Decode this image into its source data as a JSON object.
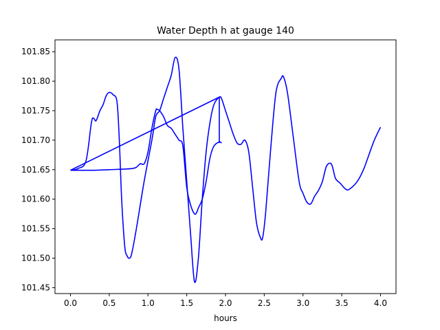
{
  "chart_data": {
    "type": "line",
    "title": "Water Depth h at gauge 140",
    "xlabel": "hours",
    "ylabel": "",
    "xlim": [
      -0.2,
      4.2
    ],
    "ylim": [
      101.44,
      101.87
    ],
    "xticks": [
      "0.0",
      "0.5",
      "1.0",
      "1.5",
      "2.0",
      "2.5",
      "3.0",
      "3.5",
      "4.0"
    ],
    "yticks": [
      "101.45",
      "101.50",
      "101.55",
      "101.60",
      "101.65",
      "101.70",
      "101.75",
      "101.80",
      "101.85"
    ],
    "grid": false,
    "line_color": "#0000ff",
    "series": [
      {
        "x": [
          0.0,
          0.1,
          0.2,
          0.27,
          0.3,
          0.33,
          0.38,
          0.42,
          0.46,
          0.5,
          0.55,
          0.6,
          0.63,
          0.66,
          0.7,
          0.73,
          0.76,
          0.79,
          0.85,
          0.95,
          1.05,
          1.1,
          1.15,
          1.2,
          1.25,
          1.3,
          1.35,
          1.4,
          1.45,
          1.5,
          1.55,
          1.6,
          1.65,
          1.7,
          1.75,
          1.8,
          1.85,
          1.92,
          1.95,
          2.0,
          2.05,
          2.1,
          2.15,
          2.2,
          2.25,
          2.3,
          2.35,
          2.4,
          2.45,
          2.48,
          2.52,
          2.58,
          2.65,
          2.72,
          2.75,
          2.8,
          2.87,
          2.95,
          3.0,
          3.05,
          3.1,
          3.15,
          3.2,
          3.25,
          3.3,
          3.35,
          3.38,
          3.42,
          3.48,
          3.55,
          3.6,
          3.7,
          3.78,
          3.85,
          3.92,
          4.0
        ],
        "y": [
          101.649,
          101.652,
          101.665,
          101.73,
          101.737,
          101.733,
          101.75,
          101.76,
          101.775,
          101.781,
          101.777,
          101.765,
          101.7,
          101.6,
          101.52,
          101.504,
          101.5,
          101.508,
          101.55,
          101.63,
          101.7,
          101.74,
          101.75,
          101.77,
          101.79,
          101.81,
          101.84,
          101.82,
          101.72,
          101.63,
          101.54,
          101.46,
          101.5,
          101.6,
          101.68,
          101.73,
          101.76,
          101.773,
          101.77,
          101.75,
          101.73,
          101.71,
          101.695,
          101.693,
          101.7,
          101.68,
          101.62,
          101.56,
          101.535,
          101.535,
          101.58,
          101.68,
          101.78,
          101.805,
          101.807,
          101.78,
          101.71,
          101.63,
          101.61,
          101.595,
          101.592,
          101.605,
          101.615,
          101.63,
          101.655,
          101.661,
          101.655,
          101.635,
          101.627,
          101.617,
          101.617,
          101.63,
          101.65,
          101.675,
          101.7,
          101.722
        ]
      },
      {
        "x": [
          1.95,
          1.92,
          1.85,
          1.8,
          1.75,
          1.7,
          1.65,
          1.63,
          1.6,
          1.55,
          1.5,
          1.45,
          1.4,
          1.35,
          1.3,
          1.25,
          1.2,
          1.15,
          1.12,
          1.1,
          1.05,
          1.0,
          0.95,
          0.9,
          0.85,
          0.8,
          0.7,
          0.5,
          0.3,
          0.0
        ],
        "y": [
          101.695,
          101.697,
          101.69,
          101.67,
          101.63,
          101.6,
          101.585,
          101.578,
          101.575,
          101.59,
          101.62,
          101.69,
          101.7,
          101.71,
          101.72,
          101.725,
          101.74,
          101.75,
          101.752,
          101.75,
          101.72,
          101.68,
          101.66,
          101.66,
          101.654,
          101.652,
          101.651,
          101.65,
          101.649,
          101.649
        ]
      },
      {
        "x": [
          0.0,
          1.92,
          1.92
        ],
        "y": [
          101.649,
          101.773,
          101.695
        ]
      }
    ]
  }
}
